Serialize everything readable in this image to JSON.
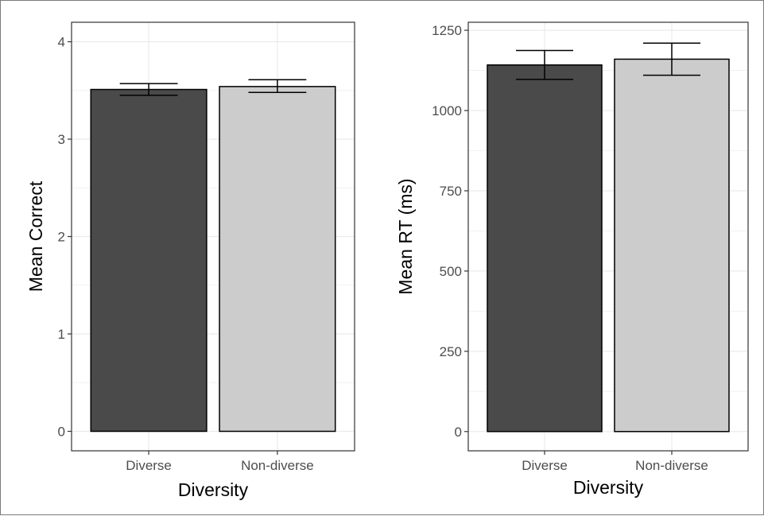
{
  "chart_data": [
    {
      "type": "bar",
      "xlabel": "Diversity",
      "ylabel": "Mean Correct",
      "categories": [
        "Diverse",
        "Non-diverse"
      ],
      "values": [
        3.51,
        3.54
      ],
      "error_bars": [
        [
          3.45,
          3.57
        ],
        [
          3.48,
          3.61
        ]
      ],
      "bar_colors": [
        "#4a4a4a",
        "#cccccc"
      ],
      "ylim": [
        -0.2,
        4.2
      ],
      "yticks": [
        0,
        1,
        2,
        3,
        4
      ],
      "ytick_labels": [
        "0",
        "1",
        "2",
        "3",
        "4"
      ],
      "grid": true
    },
    {
      "type": "bar",
      "xlabel": "Diversity",
      "ylabel": "Mean RT (ms)",
      "categories": [
        "Diverse",
        "Non-diverse"
      ],
      "values": [
        1142,
        1160
      ],
      "error_bars": [
        [
          1097,
          1187
        ],
        [
          1110,
          1210
        ]
      ],
      "bar_colors": [
        "#4a4a4a",
        "#cccccc"
      ],
      "ylim": [
        -60,
        1275
      ],
      "yticks": [
        0,
        250,
        500,
        750,
        1000,
        1250
      ],
      "ytick_labels": [
        "0",
        "250",
        "500",
        "750",
        "1000",
        "1250"
      ],
      "grid": true
    }
  ]
}
